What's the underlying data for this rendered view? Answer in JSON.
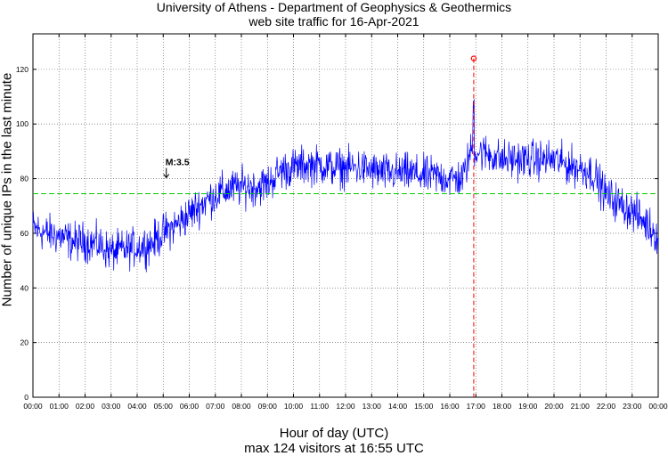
{
  "chart_data": {
    "type": "line",
    "title": "University of Athens - Department of Geophysics & Geothermics",
    "subtitle": "web site traffic for 16-Apr-2021",
    "xlabel": "Hour of day (UTC)",
    "xlabel_sub": "max 124 visitors at 16:55 UTC",
    "ylabel": "Number of unique IPs in the last minute",
    "xlim": [
      0,
      24
    ],
    "ylim": [
      0,
      133
    ],
    "x_ticks": [
      "00:00",
      "01:00",
      "02:00",
      "03:00",
      "04:00",
      "05:00",
      "06:00",
      "07:00",
      "08:00",
      "09:00",
      "10:00",
      "11:00",
      "12:00",
      "13:00",
      "14:00",
      "15:00",
      "16:00",
      "17:00",
      "18:00",
      "19:00",
      "20:00",
      "21:00",
      "22:00",
      "23:00",
      "00:00"
    ],
    "y_ticks": [
      0,
      20,
      40,
      60,
      80,
      100,
      120
    ],
    "grid": true,
    "series": [
      {
        "color": "#0000ff",
        "x": [
          0,
          0.5,
          1,
          1.5,
          2,
          2.5,
          3,
          3.5,
          4,
          4.5,
          5,
          5.5,
          6,
          6.5,
          7,
          7.5,
          8,
          8.5,
          9,
          9.5,
          10,
          10.5,
          11,
          11.5,
          12,
          12.5,
          13,
          13.5,
          14,
          14.5,
          15,
          15.5,
          16,
          16.5,
          16.9,
          17,
          17.5,
          18,
          18.5,
          19,
          19.5,
          20,
          20.5,
          21,
          21.5,
          22,
          22.5,
          23,
          23.5,
          24
        ],
        "values": [
          62,
          60,
          59,
          57,
          57,
          56,
          53,
          54,
          55,
          56,
          60,
          63,
          67,
          71,
          74,
          76,
          77,
          77,
          78,
          83,
          84,
          85,
          85,
          84,
          84,
          84,
          83,
          82,
          82,
          82,
          81,
          81,
          80,
          80,
          93,
          90,
          89,
          87,
          87,
          87,
          87,
          87,
          85,
          84,
          82,
          74,
          71,
          68,
          64,
          59
        ],
        "noise": 7
      }
    ],
    "mean_line": {
      "value": 74.5,
      "color": "#00cc00",
      "style": "dashed"
    },
    "max_marker": {
      "x": 16.92,
      "y": 124,
      "color": "#ff0000"
    },
    "annotations": [
      {
        "text": "M:3.5",
        "x": 5.05,
        "y": 80
      }
    ]
  }
}
